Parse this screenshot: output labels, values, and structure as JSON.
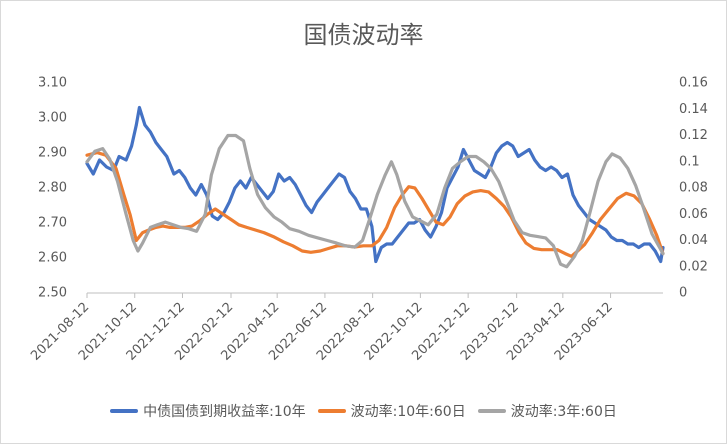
{
  "chart_data": {
    "type": "line",
    "title": "国债波动率",
    "x_ticks": [
      "2021-08-12",
      "2021-10-12",
      "2021-12-12",
      "2022-02-12",
      "2022-04-12",
      "2022-06-12",
      "2022-08-12",
      "2022-10-12",
      "2022-12-12",
      "2023-02-12",
      "2023-04-12",
      "2023-06-12"
    ],
    "x_range": [
      "2021-08-12",
      "2023-08-18"
    ],
    "y_left": {
      "range": [
        2.5,
        3.1
      ],
      "ticks": [
        "2.50",
        "2.60",
        "2.70",
        "2.80",
        "2.90",
        "3.00",
        "3.10"
      ]
    },
    "y_right": {
      "range": [
        0,
        0.16
      ],
      "ticks": [
        "0",
        "0.02",
        "0.04",
        "0.06",
        "0.08",
        "0.1",
        "0.12",
        "0.14",
        "0.16"
      ]
    },
    "grid": false,
    "legend_position": "bottom",
    "series": [
      {
        "name": "中债国债到期收益率:10年",
        "axis": "left",
        "color": "#4472C4",
        "points": [
          [
            "2021-08-12",
            2.87
          ],
          [
            "2021-08-20",
            2.84
          ],
          [
            "2021-08-28",
            2.88
          ],
          [
            "2021-09-06",
            2.86
          ],
          [
            "2021-09-15",
            2.85
          ],
          [
            "2021-09-22",
            2.89
          ],
          [
            "2021-10-01",
            2.88
          ],
          [
            "2021-10-08",
            2.92
          ],
          [
            "2021-10-14",
            2.98
          ],
          [
            "2021-10-18",
            3.03
          ],
          [
            "2021-10-25",
            2.98
          ],
          [
            "2021-11-01",
            2.96
          ],
          [
            "2021-11-08",
            2.93
          ],
          [
            "2021-11-15",
            2.91
          ],
          [
            "2021-11-22",
            2.89
          ],
          [
            "2021-12-01",
            2.84
          ],
          [
            "2021-12-08",
            2.85
          ],
          [
            "2021-12-15",
            2.83
          ],
          [
            "2021-12-22",
            2.8
          ],
          [
            "2021-12-29",
            2.78
          ],
          [
            "2022-01-05",
            2.81
          ],
          [
            "2022-01-12",
            2.78
          ],
          [
            "2022-01-19",
            2.72
          ],
          [
            "2022-01-26",
            2.71
          ],
          [
            "2022-02-03",
            2.73
          ],
          [
            "2022-02-10",
            2.76
          ],
          [
            "2022-02-17",
            2.8
          ],
          [
            "2022-02-24",
            2.82
          ],
          [
            "2022-03-03",
            2.8
          ],
          [
            "2022-03-10",
            2.83
          ],
          [
            "2022-03-17",
            2.81
          ],
          [
            "2022-03-24",
            2.79
          ],
          [
            "2022-03-31",
            2.77
          ],
          [
            "2022-04-07",
            2.79
          ],
          [
            "2022-04-14",
            2.84
          ],
          [
            "2022-04-21",
            2.82
          ],
          [
            "2022-04-28",
            2.83
          ],
          [
            "2022-05-05",
            2.81
          ],
          [
            "2022-05-12",
            2.78
          ],
          [
            "2022-05-19",
            2.75
          ],
          [
            "2022-05-26",
            2.73
          ],
          [
            "2022-06-02",
            2.76
          ],
          [
            "2022-06-09",
            2.78
          ],
          [
            "2022-06-16",
            2.8
          ],
          [
            "2022-06-23",
            2.82
          ],
          [
            "2022-06-30",
            2.84
          ],
          [
            "2022-07-07",
            2.83
          ],
          [
            "2022-07-14",
            2.79
          ],
          [
            "2022-07-21",
            2.77
          ],
          [
            "2022-07-28",
            2.74
          ],
          [
            "2022-08-04",
            2.74
          ],
          [
            "2022-08-11",
            2.69
          ],
          [
            "2022-08-16",
            2.59
          ],
          [
            "2022-08-23",
            2.63
          ],
          [
            "2022-08-30",
            2.64
          ],
          [
            "2022-09-06",
            2.64
          ],
          [
            "2022-09-13",
            2.66
          ],
          [
            "2022-09-20",
            2.68
          ],
          [
            "2022-09-27",
            2.7
          ],
          [
            "2022-10-04",
            2.7
          ],
          [
            "2022-10-11",
            2.71
          ],
          [
            "2022-10-18",
            2.68
          ],
          [
            "2022-10-25",
            2.66
          ],
          [
            "2022-11-01",
            2.69
          ],
          [
            "2022-11-08",
            2.73
          ],
          [
            "2022-11-15",
            2.8
          ],
          [
            "2022-11-22",
            2.83
          ],
          [
            "2022-11-29",
            2.86
          ],
          [
            "2022-12-06",
            2.91
          ],
          [
            "2022-12-13",
            2.88
          ],
          [
            "2022-12-20",
            2.85
          ],
          [
            "2022-12-27",
            2.84
          ],
          [
            "2023-01-03",
            2.83
          ],
          [
            "2023-01-10",
            2.86
          ],
          [
            "2023-01-17",
            2.9
          ],
          [
            "2023-01-24",
            2.92
          ],
          [
            "2023-01-31",
            2.93
          ],
          [
            "2023-02-07",
            2.92
          ],
          [
            "2023-02-14",
            2.89
          ],
          [
            "2023-02-21",
            2.9
          ],
          [
            "2023-02-28",
            2.91
          ],
          [
            "2023-03-07",
            2.88
          ],
          [
            "2023-03-14",
            2.86
          ],
          [
            "2023-03-21",
            2.85
          ],
          [
            "2023-03-28",
            2.86
          ],
          [
            "2023-04-04",
            2.85
          ],
          [
            "2023-04-11",
            2.83
          ],
          [
            "2023-04-18",
            2.84
          ],
          [
            "2023-04-25",
            2.78
          ],
          [
            "2023-05-02",
            2.75
          ],
          [
            "2023-05-09",
            2.73
          ],
          [
            "2023-05-16",
            2.71
          ],
          [
            "2023-05-23",
            2.7
          ],
          [
            "2023-05-30",
            2.69
          ],
          [
            "2023-06-06",
            2.68
          ],
          [
            "2023-06-13",
            2.66
          ],
          [
            "2023-06-20",
            2.65
          ],
          [
            "2023-06-27",
            2.65
          ],
          [
            "2023-07-04",
            2.64
          ],
          [
            "2023-07-11",
            2.64
          ],
          [
            "2023-07-18",
            2.63
          ],
          [
            "2023-07-25",
            2.64
          ],
          [
            "2023-08-01",
            2.64
          ],
          [
            "2023-08-08",
            2.62
          ],
          [
            "2023-08-15",
            2.59
          ],
          [
            "2023-08-18",
            2.63
          ]
        ]
      },
      {
        "name": "波动率:10年:60日",
        "axis": "right",
        "color": "#ED7D31",
        "points": [
          [
            "2021-08-12",
            0.105
          ],
          [
            "2021-08-25",
            0.107
          ],
          [
            "2021-09-05",
            0.105
          ],
          [
            "2021-09-18",
            0.095
          ],
          [
            "2021-09-28",
            0.075
          ],
          [
            "2021-10-06",
            0.06
          ],
          [
            "2021-10-14",
            0.04
          ],
          [
            "2021-10-22",
            0.046
          ],
          [
            "2021-10-30",
            0.048
          ],
          [
            "2021-11-08",
            0.05
          ],
          [
            "2021-11-17",
            0.051
          ],
          [
            "2021-11-26",
            0.05
          ],
          [
            "2021-12-05",
            0.05
          ],
          [
            "2021-12-15",
            0.05
          ],
          [
            "2021-12-24",
            0.051
          ],
          [
            "2022-01-03",
            0.055
          ],
          [
            "2022-01-13",
            0.06
          ],
          [
            "2022-01-23",
            0.064
          ],
          [
            "2022-02-02",
            0.06
          ],
          [
            "2022-02-12",
            0.056
          ],
          [
            "2022-02-22",
            0.052
          ],
          [
            "2022-03-04",
            0.05
          ],
          [
            "2022-03-15",
            0.048
          ],
          [
            "2022-03-26",
            0.046
          ],
          [
            "2022-04-07",
            0.043
          ],
          [
            "2022-04-20",
            0.039
          ],
          [
            "2022-05-02",
            0.036
          ],
          [
            "2022-05-14",
            0.032
          ],
          [
            "2022-05-25",
            0.031
          ],
          [
            "2022-06-06",
            0.032
          ],
          [
            "2022-06-17",
            0.034
          ],
          [
            "2022-06-28",
            0.036
          ],
          [
            "2022-07-09",
            0.036
          ],
          [
            "2022-07-20",
            0.035
          ],
          [
            "2022-07-31",
            0.036
          ],
          [
            "2022-08-11",
            0.036
          ],
          [
            "2022-08-20",
            0.04
          ],
          [
            "2022-08-30",
            0.05
          ],
          [
            "2022-09-09",
            0.065
          ],
          [
            "2022-09-19",
            0.075
          ],
          [
            "2022-09-27",
            0.081
          ],
          [
            "2022-10-05",
            0.08
          ],
          [
            "2022-10-14",
            0.072
          ],
          [
            "2022-10-23",
            0.063
          ],
          [
            "2022-11-01",
            0.054
          ],
          [
            "2022-11-10",
            0.052
          ],
          [
            "2022-11-19",
            0.058
          ],
          [
            "2022-11-28",
            0.068
          ],
          [
            "2022-12-08",
            0.074
          ],
          [
            "2022-12-18",
            0.077
          ],
          [
            "2022-12-28",
            0.078
          ],
          [
            "2023-01-07",
            0.077
          ],
          [
            "2023-01-17",
            0.072
          ],
          [
            "2023-01-27",
            0.066
          ],
          [
            "2023-02-05",
            0.058
          ],
          [
            "2023-02-15",
            0.046
          ],
          [
            "2023-02-24",
            0.038
          ],
          [
            "2023-03-06",
            0.034
          ],
          [
            "2023-03-16",
            0.033
          ],
          [
            "2023-03-26",
            0.033
          ],
          [
            "2023-04-05",
            0.033
          ],
          [
            "2023-04-15",
            0.03
          ],
          [
            "2023-04-23",
            0.028
          ],
          [
            "2023-05-01",
            0.032
          ],
          [
            "2023-05-10",
            0.037
          ],
          [
            "2023-05-20",
            0.046
          ],
          [
            "2023-05-30",
            0.056
          ],
          [
            "2023-06-10",
            0.064
          ],
          [
            "2023-06-21",
            0.072
          ],
          [
            "2023-07-02",
            0.076
          ],
          [
            "2023-07-12",
            0.074
          ],
          [
            "2023-07-22",
            0.068
          ],
          [
            "2023-08-01",
            0.056
          ],
          [
            "2023-08-10",
            0.044
          ],
          [
            "2023-08-18",
            0.03
          ]
        ]
      },
      {
        "name": "波动率:3年:60日",
        "axis": "right",
        "color": "#A5A5A5",
        "points": [
          [
            "2021-08-12",
            0.1
          ],
          [
            "2021-08-22",
            0.108
          ],
          [
            "2021-09-01",
            0.11
          ],
          [
            "2021-09-10",
            0.102
          ],
          [
            "2021-09-20",
            0.085
          ],
          [
            "2021-10-01",
            0.06
          ],
          [
            "2021-10-10",
            0.04
          ],
          [
            "2021-10-16",
            0.032
          ],
          [
            "2021-10-22",
            0.038
          ],
          [
            "2021-11-01",
            0.05
          ],
          [
            "2021-11-10",
            0.052
          ],
          [
            "2021-11-20",
            0.054
          ],
          [
            "2021-11-30",
            0.052
          ],
          [
            "2021-12-10",
            0.05
          ],
          [
            "2021-12-20",
            0.049
          ],
          [
            "2021-12-30",
            0.047
          ],
          [
            "2022-01-10",
            0.06
          ],
          [
            "2022-01-18",
            0.09
          ],
          [
            "2022-01-28",
            0.11
          ],
          [
            "2022-02-08",
            0.12
          ],
          [
            "2022-02-18",
            0.12
          ],
          [
            "2022-02-28",
            0.116
          ],
          [
            "2022-03-08",
            0.095
          ],
          [
            "2022-03-18",
            0.075
          ],
          [
            "2022-03-28",
            0.065
          ],
          [
            "2022-04-08",
            0.058
          ],
          [
            "2022-04-18",
            0.054
          ],
          [
            "2022-04-28",
            0.049
          ],
          [
            "2022-05-10",
            0.047
          ],
          [
            "2022-05-22",
            0.044
          ],
          [
            "2022-06-03",
            0.042
          ],
          [
            "2022-06-15",
            0.04
          ],
          [
            "2022-06-27",
            0.038
          ],
          [
            "2022-07-08",
            0.036
          ],
          [
            "2022-07-20",
            0.035
          ],
          [
            "2022-07-30",
            0.04
          ],
          [
            "2022-08-08",
            0.056
          ],
          [
            "2022-08-18",
            0.075
          ],
          [
            "2022-08-28",
            0.09
          ],
          [
            "2022-09-05",
            0.1
          ],
          [
            "2022-09-12",
            0.09
          ],
          [
            "2022-09-22",
            0.07
          ],
          [
            "2022-10-02",
            0.058
          ],
          [
            "2022-10-12",
            0.055
          ],
          [
            "2022-10-22",
            0.052
          ],
          [
            "2022-11-02",
            0.06
          ],
          [
            "2022-11-12",
            0.08
          ],
          [
            "2022-11-22",
            0.095
          ],
          [
            "2022-12-02",
            0.1
          ],
          [
            "2022-12-12",
            0.104
          ],
          [
            "2022-12-22",
            0.104
          ],
          [
            "2023-01-01",
            0.1
          ],
          [
            "2023-01-10",
            0.095
          ],
          [
            "2023-01-20",
            0.085
          ],
          [
            "2023-01-30",
            0.07
          ],
          [
            "2023-02-09",
            0.055
          ],
          [
            "2023-02-19",
            0.046
          ],
          [
            "2023-03-01",
            0.044
          ],
          [
            "2023-03-11",
            0.043
          ],
          [
            "2023-03-21",
            0.042
          ],
          [
            "2023-03-31",
            0.036
          ],
          [
            "2023-04-09",
            0.022
          ],
          [
            "2023-04-17",
            0.02
          ],
          [
            "2023-04-27",
            0.028
          ],
          [
            "2023-05-07",
            0.04
          ],
          [
            "2023-05-17",
            0.062
          ],
          [
            "2023-05-27",
            0.085
          ],
          [
            "2023-06-06",
            0.1
          ],
          [
            "2023-06-14",
            0.106
          ],
          [
            "2023-06-24",
            0.103
          ],
          [
            "2023-07-04",
            0.095
          ],
          [
            "2023-07-14",
            0.082
          ],
          [
            "2023-07-24",
            0.065
          ],
          [
            "2023-08-04",
            0.045
          ],
          [
            "2023-08-18",
            0.03
          ]
        ]
      }
    ]
  }
}
